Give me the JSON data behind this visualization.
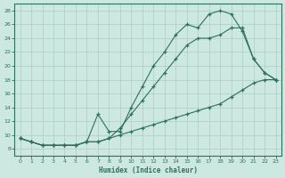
{
  "xlabel": "Humidex (Indice chaleur)",
  "xlim": [
    -0.5,
    23.5
  ],
  "ylim": [
    7,
    29
  ],
  "xticks": [
    0,
    1,
    2,
    3,
    4,
    5,
    6,
    7,
    8,
    9,
    10,
    11,
    12,
    13,
    14,
    15,
    16,
    17,
    18,
    19,
    20,
    21,
    22,
    23
  ],
  "yticks": [
    8,
    10,
    12,
    14,
    16,
    18,
    20,
    22,
    24,
    26,
    28
  ],
  "bg_color": "#cce8e0",
  "grid_color": "#aaccc4",
  "line_color": "#2d7060",
  "line1_x": [
    0,
    1,
    2,
    3,
    4,
    5,
    6,
    7,
    8,
    9,
    10,
    11,
    12,
    13,
    14,
    15,
    16,
    17,
    18,
    19,
    20,
    21,
    22,
    23
  ],
  "line1_y": [
    9.5,
    9.0,
    8.5,
    8.5,
    8.5,
    8.5,
    9.0,
    9.0,
    9.5,
    11.0,
    13.0,
    15.0,
    17.0,
    19.0,
    21.0,
    23.0,
    24.0,
    24.0,
    24.5,
    25.5,
    25.5,
    21.0,
    19.0,
    18.0
  ],
  "line2_x": [
    0,
    1,
    2,
    3,
    4,
    5,
    6,
    7,
    8,
    9,
    10,
    11,
    12,
    13,
    14,
    15,
    16,
    17,
    18,
    19,
    20,
    21,
    22,
    23
  ],
  "line2_y": [
    9.5,
    9.0,
    8.5,
    8.5,
    8.5,
    8.5,
    9.0,
    13.0,
    10.5,
    10.5,
    14.0,
    17.0,
    20.0,
    22.0,
    24.5,
    26.0,
    25.5,
    27.5,
    28.0,
    27.5,
    25.0,
    21.0,
    19.0,
    18.0
  ],
  "line3_x": [
    0,
    1,
    2,
    3,
    4,
    5,
    6,
    7,
    8,
    9,
    10,
    11,
    12,
    13,
    14,
    15,
    16,
    17,
    18,
    19,
    20,
    21,
    22,
    23
  ],
  "line3_y": [
    9.5,
    9.0,
    8.5,
    8.5,
    8.5,
    8.5,
    9.0,
    9.0,
    9.5,
    10.0,
    10.5,
    11.0,
    11.5,
    12.0,
    12.5,
    13.0,
    13.5,
    14.0,
    14.5,
    15.5,
    16.5,
    17.5,
    18.0,
    18.0
  ]
}
